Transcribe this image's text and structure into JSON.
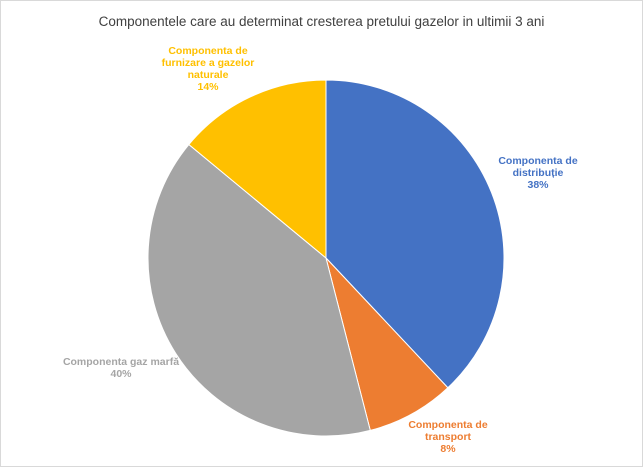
{
  "chart_data": {
    "type": "pie",
    "title": "Componentele care au determinat cresterea pretului gazelor in ultimii 3 ani",
    "start_angle_deg": 0,
    "direction": "clockwise",
    "legend": "none",
    "slices": [
      {
        "label_lines": [
          "Componenta de",
          "distribuție"
        ],
        "percent_text": "38%",
        "value": 38,
        "color": "#4472c4"
      },
      {
        "label_lines": [
          "Componenta de",
          "transport"
        ],
        "percent_text": "8%",
        "value": 8,
        "color": "#ed7d31"
      },
      {
        "label_lines": [
          "Componenta gaz marfă"
        ],
        "percent_text": "40%",
        "value": 40,
        "color": "#a5a5a5"
      },
      {
        "label_lines": [
          "Componenta de",
          "furnizare a gazelor",
          "naturale"
        ],
        "percent_text": "14%",
        "value": 14,
        "color": "#ffc000"
      }
    ]
  }
}
